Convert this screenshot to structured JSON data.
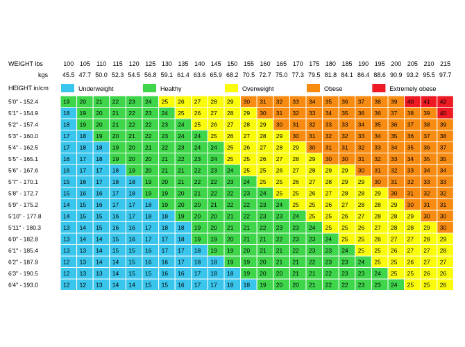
{
  "chart_data": {
    "type": "heatmap",
    "weight_label": "WEIGHT lbs",
    "kgs_label": "kgs",
    "height_label": "HEIGHT  in/cm",
    "weights_lbs": [
      "100",
      "105",
      "110",
      "115",
      "120",
      "125",
      "130",
      "135",
      "140",
      "145",
      "150",
      "155",
      "160",
      "165",
      "170",
      "175",
      "180",
      "185",
      "190",
      "195",
      "200",
      "205",
      "210",
      "215"
    ],
    "weights_kgs": [
      "45.5",
      "47.7",
      "50.0",
      "52.3",
      "54.5",
      "56.8",
      "59.1",
      "61.4",
      "63.6",
      "65.9",
      "68.2",
      "70.5",
      "72.7",
      "75.0",
      "77.3",
      "79.5",
      "81.8",
      "84.1",
      "86.4",
      "88.6",
      "90.9",
      "93.2",
      "95.5",
      "97.7"
    ],
    "heights": [
      "5'0\"  -  152.4",
      "5'1\"  -  154.9",
      "5'2\"  -  157.4",
      "5'3\"  -  160.0",
      "5'4\"  -  162.5",
      "5'5\"  -  165.1",
      "5'6\"  -  167.6",
      "5'7\"  -  170.1",
      "5'8\"  -  172.7",
      "5'9\"  -  175.2",
      "5'10\"  -  177.8",
      "5'11\"  -  180.3",
      "6'0\"  -  182.8",
      "6'1\"  -  185.4",
      "6'2\"  -  187.9",
      "6'3\"  -  190.5",
      "6'4\"  -  193.0"
    ],
    "legend": [
      {
        "name": "Underweight",
        "color": "#3ac5ec"
      },
      {
        "name": "Healthy",
        "color": "#3fd64b"
      },
      {
        "name": "Overweight",
        "color": "#fbfb0c"
      },
      {
        "name": "Obese",
        "color": "#f88c12"
      },
      {
        "name": "Extremely obese",
        "color": "#ee1a24"
      }
    ],
    "category_colors": {
      "underweight": "#3ac5ec",
      "healthy": "#3fd64b",
      "overweight": "#fbfb0c",
      "obese": "#f88c12",
      "extremely_obese": "#ee1a24"
    },
    "bmi": [
      [
        19,
        20,
        21,
        22,
        23,
        24,
        25,
        26,
        27,
        28,
        29,
        30,
        31,
        32,
        33,
        34,
        35,
        36,
        37,
        38,
        39,
        40,
        41,
        42
      ],
      [
        18,
        19,
        20,
        21,
        22,
        23,
        24,
        25,
        26,
        27,
        28,
        29,
        30,
        31,
        32,
        33,
        34,
        35,
        36,
        36,
        37,
        38,
        39,
        40
      ],
      [
        18,
        19,
        20,
        21,
        22,
        22,
        23,
        24,
        25,
        26,
        27,
        28,
        29,
        30,
        31,
        32,
        33,
        33,
        34,
        35,
        36,
        37,
        38,
        39
      ],
      [
        17,
        18,
        19,
        20,
        21,
        22,
        23,
        24,
        24,
        25,
        26,
        27,
        28,
        29,
        30,
        31,
        32,
        32,
        33,
        34,
        35,
        36,
        37,
        38
      ],
      [
        17,
        18,
        18,
        19,
        20,
        21,
        22,
        23,
        24,
        24,
        25,
        26,
        27,
        28,
        29,
        30,
        31,
        31,
        32,
        33,
        34,
        35,
        36,
        37
      ],
      [
        16,
        17,
        18,
        19,
        20,
        20,
        21,
        22,
        23,
        24,
        25,
        25,
        26,
        27,
        28,
        29,
        30,
        30,
        31,
        32,
        33,
        34,
        35,
        35
      ],
      [
        16,
        17,
        17,
        18,
        19,
        20,
        21,
        21,
        22,
        23,
        24,
        25,
        25,
        26,
        27,
        28,
        29,
        29,
        30,
        31,
        32,
        33,
        34,
        34
      ],
      [
        15,
        16,
        17,
        18,
        18,
        19,
        20,
        21,
        22,
        22,
        23,
        24,
        25,
        25,
        26,
        27,
        28,
        29,
        29,
        30,
        31,
        32,
        33,
        33
      ],
      [
        15,
        16,
        16,
        17,
        18,
        19,
        19,
        20,
        21,
        22,
        22,
        23,
        24,
        25,
        25,
        26,
        27,
        28,
        28,
        29,
        30,
        31,
        32,
        32
      ],
      [
        14,
        15,
        16,
        17,
        17,
        18,
        19,
        20,
        20,
        21,
        22,
        22,
        23,
        24,
        25,
        25,
        26,
        27,
        28,
        28,
        29,
        30,
        31,
        31
      ],
      [
        14,
        15,
        15,
        16,
        17,
        18,
        18,
        19,
        20,
        20,
        21,
        22,
        23,
        23,
        24,
        25,
        25,
        26,
        27,
        28,
        28,
        29,
        30,
        30
      ],
      [
        13,
        14,
        15,
        16,
        16,
        17,
        18,
        18,
        19,
        20,
        21,
        21,
        22,
        23,
        23,
        24,
        25,
        25,
        26,
        27,
        28,
        28,
        29,
        30
      ],
      [
        13,
        14,
        14,
        15,
        16,
        17,
        17,
        18,
        19,
        19,
        20,
        21,
        21,
        22,
        23,
        23,
        24,
        25,
        25,
        26,
        27,
        27,
        28,
        29
      ],
      [
        13,
        13,
        14,
        15,
        15,
        16,
        17,
        17,
        18,
        19,
        19,
        20,
        21,
        21,
        22,
        23,
        23,
        24,
        25,
        25,
        26,
        27,
        27,
        28
      ],
      [
        12,
        13,
        14,
        14,
        15,
        16,
        16,
        17,
        18,
        18,
        19,
        19,
        20,
        21,
        21,
        22,
        23,
        23,
        24,
        25,
        25,
        26,
        27,
        27
      ],
      [
        12,
        13,
        13,
        14,
        15,
        15,
        16,
        16,
        17,
        18,
        18,
        19,
        20,
        20,
        21,
        21,
        22,
        23,
        23,
        24,
        25,
        25,
        26,
        26
      ],
      [
        12,
        12,
        13,
        14,
        14,
        15,
        15,
        16,
        17,
        17,
        18,
        18,
        19,
        20,
        20,
        21,
        22,
        22,
        23,
        23,
        24,
        25,
        25,
        26
      ]
    ]
  }
}
